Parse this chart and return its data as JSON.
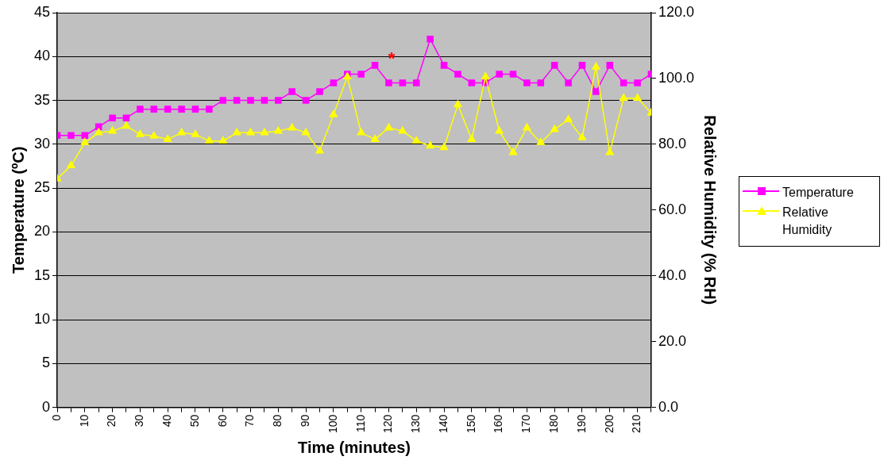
{
  "chart_data": {
    "type": "line",
    "xlabel": "Time (minutes)",
    "ylabel": "Temperature (ºC)",
    "y2label": "Relative Humidity (% RH)",
    "x": [
      0,
      5,
      10,
      15,
      20,
      25,
      30,
      35,
      40,
      45,
      50,
      55,
      60,
      65,
      70,
      75,
      80,
      85,
      90,
      95,
      100,
      105,
      110,
      115,
      120,
      125,
      130,
      135,
      140,
      145,
      150,
      155,
      160,
      165,
      170,
      175,
      180,
      185,
      190,
      195,
      200,
      205,
      210,
      215
    ],
    "series": [
      {
        "name": "Temperature",
        "color": "#ff00ff",
        "marker": "square",
        "values": [
          31,
          31,
          31,
          32,
          33,
          33,
          34,
          34,
          34,
          34,
          34,
          34,
          35,
          35,
          35,
          35,
          35,
          36,
          35,
          36,
          37,
          38,
          38,
          39,
          37,
          37,
          37,
          42,
          39,
          38,
          37,
          37,
          38,
          38,
          37,
          37,
          39,
          37,
          39,
          36,
          39,
          37,
          37,
          38
        ]
      },
      {
        "name": "Relative Humidity",
        "color": "#ffff00",
        "marker": "triangle",
        "axis": "y2",
        "values": [
          69.5,
          73.5,
          80.5,
          83.5,
          84,
          85.5,
          83,
          82.5,
          81.5,
          83.5,
          83,
          81,
          81,
          83.5,
          83.5,
          83.5,
          84,
          85,
          83.5,
          78,
          89,
          100.5,
          83.5,
          81.5,
          85,
          84,
          81,
          79.5,
          79,
          92,
          81.5,
          100.5,
          84,
          77.5,
          85,
          80.5,
          84.5,
          87.5,
          82,
          103.5,
          77.5,
          94,
          94,
          89.5
        ]
      }
    ],
    "xlim": [
      0,
      215
    ],
    "xticks": [
      0,
      {
        "value": 5,
        "label": null
      },
      10,
      {
        "value": 15,
        "label": null
      },
      20,
      {
        "value": 25,
        "label": null
      },
      30,
      {
        "value": 35,
        "label": null
      },
      40,
      {
        "value": 45,
        "label": null
      },
      50,
      {
        "value": 55,
        "label": null
      },
      60,
      {
        "value": 65,
        "label": null
      },
      70,
      {
        "value": 75,
        "label": null
      },
      80,
      {
        "value": 85,
        "label": null
      },
      90,
      {
        "value": 95,
        "label": null
      },
      100,
      {
        "value": 105,
        "label": null
      },
      110,
      {
        "value": 115,
        "label": null
      },
      120,
      {
        "value": 125,
        "label": null
      },
      130,
      {
        "value": 135,
        "label": null
      },
      140,
      {
        "value": 145,
        "label": null
      },
      150,
      {
        "value": 155,
        "label": null
      },
      160,
      {
        "value": 165,
        "label": null
      },
      170,
      {
        "value": 175,
        "label": null
      },
      180,
      {
        "value": 185,
        "label": null
      },
      190,
      {
        "value": 195,
        "label": null
      },
      200,
      {
        "value": 205,
        "label": null
      },
      210,
      {
        "value": 215,
        "label": null
      }
    ],
    "ylim": [
      0,
      45
    ],
    "yticks": [
      0,
      5,
      10,
      15,
      20,
      25,
      30,
      35,
      40,
      45
    ],
    "y2lim": [
      0,
      120
    ],
    "y2ticks": [
      {
        "value": 0,
        "label": "0.0"
      },
      {
        "value": 20,
        "label": "20.0"
      },
      {
        "value": 40,
        "label": "40.0"
      },
      {
        "value": 60,
        "label": "60.0"
      },
      {
        "value": 80,
        "label": "80.0"
      },
      {
        "value": 100,
        "label": "100.0"
      },
      {
        "value": 120,
        "label": "120.0"
      }
    ],
    "grid": "y",
    "legend": "right",
    "line_style": "solid",
    "annotations": [
      "*"
    ]
  }
}
